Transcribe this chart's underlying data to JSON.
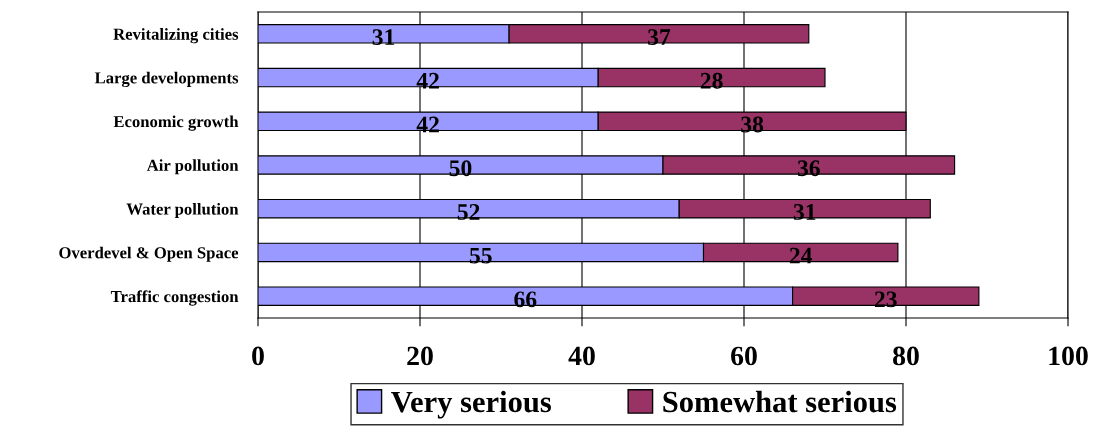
{
  "chart_data": {
    "type": "bar",
    "orientation": "horizontal",
    "stacked": true,
    "categories": [
      "Revitalizing cities",
      "Large developments",
      "Economic growth",
      "Air pollution",
      "Water pollution",
      "Overdevel & Open Space",
      "Traffic congestion"
    ],
    "series": [
      {
        "name": "Very serious",
        "color": "#9999ff",
        "values": [
          31,
          42,
          42,
          50,
          52,
          55,
          66
        ]
      },
      {
        "name": "Somewhat serious",
        "color": "#993366",
        "values": [
          37,
          28,
          38,
          36,
          31,
          24,
          23
        ]
      }
    ],
    "xlim": [
      0,
      100
    ],
    "xticks": [
      0,
      20,
      40,
      60,
      80,
      100
    ],
    "grid": "x",
    "legend": "bottom",
    "data_labels": true
  }
}
